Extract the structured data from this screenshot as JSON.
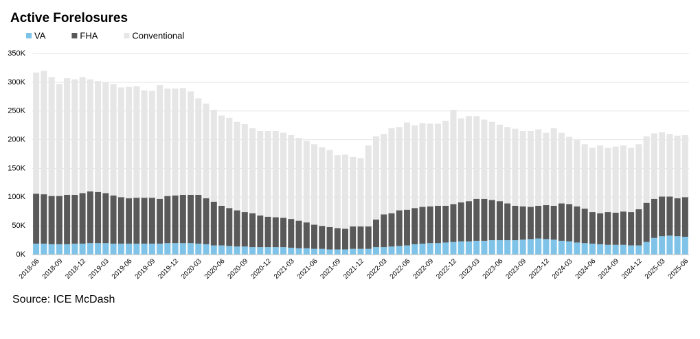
{
  "chart_data": {
    "type": "stacked_bar",
    "title": "Active Forelosures",
    "source": "Source: ICE McDash",
    "categories": [
      "2018-06",
      null,
      null,
      "2018-09",
      null,
      null,
      "2018-12",
      null,
      null,
      "2019-03",
      null,
      null,
      "2019-06",
      null,
      null,
      "2019-09",
      null,
      null,
      "2019-12",
      null,
      null,
      "2020-03",
      null,
      null,
      "2020-06",
      null,
      null,
      "2020-09",
      null,
      null,
      "2020-12",
      null,
      null,
      "2021-03",
      null,
      null,
      "2021-06",
      null,
      null,
      "2021-09",
      null,
      null,
      "2021-12",
      null,
      null,
      "2022-03",
      null,
      null,
      "2022-06",
      null,
      null,
      "2022-09",
      null,
      null,
      "2022-12",
      null,
      null,
      "2023-03",
      null,
      null,
      "2023-06",
      null,
      null,
      "2023-09",
      null,
      null,
      "2023-12",
      null,
      null,
      "2024-03",
      null,
      null,
      "2024-06",
      null,
      null,
      "2024-09",
      null,
      null,
      "2024-12",
      null,
      null,
      "2025-03",
      null,
      null,
      "2025-06"
    ],
    "series": [
      {
        "name": "VA",
        "color": "#7fc4e8",
        "values": [
          19000,
          19000,
          18000,
          18000,
          18000,
          19000,
          19000,
          20000,
          20000,
          20000,
          19000,
          19000,
          19000,
          19000,
          19000,
          19000,
          19000,
          20000,
          20000,
          20000,
          20000,
          19000,
          18000,
          16000,
          16000,
          15000,
          14000,
          14000,
          13000,
          13000,
          13000,
          13000,
          13000,
          12000,
          11000,
          11000,
          10000,
          10000,
          9000,
          9000,
          9000,
          10000,
          10000,
          10000,
          13000,
          13000,
          14000,
          15000,
          16000,
          18000,
          19000,
          20000,
          20000,
          21000,
          22000,
          23000,
          23000,
          24000,
          24000,
          25000,
          25000,
          25000,
          25000,
          26000,
          27000,
          28000,
          27000,
          26000,
          24000,
          23000,
          21000,
          20000,
          19000,
          18000,
          17000,
          17000,
          17000,
          16000,
          16000,
          22000,
          29000,
          32000,
          33000,
          32000,
          31000
        ]
      },
      {
        "name": "FHA",
        "color": "#595959",
        "values": [
          87000,
          86000,
          84000,
          84000,
          86000,
          85000,
          88000,
          90000,
          89000,
          87000,
          84000,
          81000,
          79000,
          80000,
          80000,
          80000,
          78000,
          82000,
          83000,
          84000,
          84000,
          85000,
          80000,
          76000,
          69000,
          66000,
          63000,
          60000,
          59000,
          55000,
          53000,
          52000,
          51000,
          50000,
          48000,
          45000,
          42000,
          40000,
          39000,
          37000,
          36000,
          39000,
          39000,
          39000,
          48000,
          57000,
          58000,
          62000,
          62000,
          63000,
          64000,
          64000,
          65000,
          64000,
          66000,
          68000,
          70000,
          73000,
          73000,
          70000,
          68000,
          64000,
          60000,
          58000,
          56000,
          57000,
          59000,
          59000,
          65000,
          65000,
          63000,
          60000,
          55000,
          54000,
          57000,
          56000,
          58000,
          58000,
          63000,
          68000,
          68000,
          69000,
          68000,
          66000,
          69000
        ]
      },
      {
        "name": "Conventional",
        "color": "#e6e6e6",
        "values": [
          211000,
          215000,
          207000,
          195000,
          203000,
          201000,
          202000,
          195000,
          193000,
          193000,
          194000,
          191000,
          194000,
          194000,
          187000,
          186000,
          198000,
          187000,
          186000,
          186000,
          180000,
          168000,
          165000,
          160000,
          157000,
          157000,
          154000,
          153000,
          148000,
          147000,
          149000,
          150000,
          148000,
          146000,
          144000,
          142000,
          140000,
          137000,
          134000,
          127000,
          129000,
          121000,
          119000,
          141000,
          145000,
          140000,
          148000,
          145000,
          152000,
          144000,
          146000,
          144000,
          143000,
          148000,
          164000,
          146000,
          148000,
          144000,
          138000,
          136000,
          133000,
          133000,
          134000,
          131000,
          132000,
          133000,
          126000,
          135000,
          123000,
          117000,
          116000,
          112000,
          112000,
          118000,
          112000,
          115000,
          115000,
          112000,
          113000,
          116000,
          114000,
          112000,
          109000,
          109000,
          108000
        ]
      }
    ],
    "ylim": [
      0,
      350000
    ],
    "yticks": [
      {
        "value": 0,
        "label": "0K"
      },
      {
        "value": 50000,
        "label": "50K"
      },
      {
        "value": 100000,
        "label": "100K"
      },
      {
        "value": 150000,
        "label": "150K"
      },
      {
        "value": 200000,
        "label": "200K"
      },
      {
        "value": 250000,
        "label": "250K"
      },
      {
        "value": 300000,
        "label": "300K"
      },
      {
        "value": 350000,
        "label": "350K"
      }
    ],
    "grid": true,
    "legend": "top-left"
  }
}
